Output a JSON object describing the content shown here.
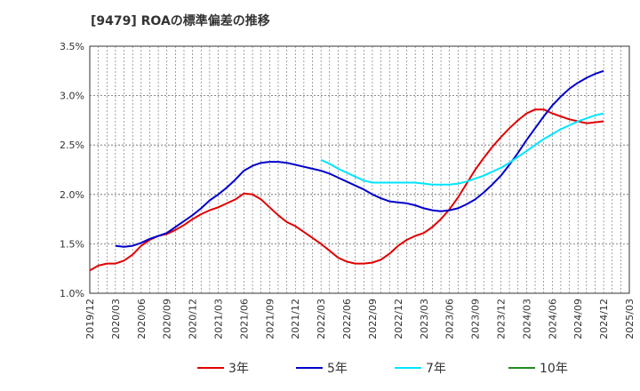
{
  "chart_data": {
    "type": "line",
    "title": "[9479]  ROAの標準偏差の推移",
    "xlabel": "",
    "ylabel": "",
    "ylim": [
      1.0,
      3.5
    ],
    "y_ticks": [
      "1.0%",
      "1.5%",
      "2.0%",
      "2.5%",
      "3.0%",
      "3.5%"
    ],
    "y_tick_values": [
      1.0,
      1.5,
      2.0,
      2.5,
      3.0,
      3.5
    ],
    "x_ticks": [
      "2019/12",
      "2020/03",
      "2020/06",
      "2020/09",
      "2020/12",
      "2021/03",
      "2021/06",
      "2021/09",
      "2021/12",
      "2022/03",
      "2022/06",
      "2022/09",
      "2022/12",
      "2023/03",
      "2023/06",
      "2023/09",
      "2023/12",
      "2024/03",
      "2024/06",
      "2024/09",
      "2024/12",
      "2025/03"
    ],
    "grid": true,
    "legend_position": "bottom",
    "series": [
      {
        "name": "3年",
        "color": "#e00000",
        "points": [
          [
            "2019/12",
            1.23
          ],
          [
            "2020/01",
            1.28
          ],
          [
            "2020/02",
            1.3
          ],
          [
            "2020/03",
            1.3
          ],
          [
            "2020/04",
            1.33
          ],
          [
            "2020/05",
            1.39
          ],
          [
            "2020/06",
            1.48
          ],
          [
            "2020/07",
            1.54
          ],
          [
            "2020/08",
            1.58
          ],
          [
            "2020/09",
            1.6
          ],
          [
            "2020/10",
            1.64
          ],
          [
            "2020/11",
            1.69
          ],
          [
            "2020/12",
            1.75
          ],
          [
            "2021/01",
            1.8
          ],
          [
            "2021/02",
            1.84
          ],
          [
            "2021/03",
            1.87
          ],
          [
            "2021/04",
            1.91
          ],
          [
            "2021/05",
            1.95
          ],
          [
            "2021/06",
            2.01
          ],
          [
            "2021/07",
            2.0
          ],
          [
            "2021/08",
            1.95
          ],
          [
            "2021/09",
            1.87
          ],
          [
            "2021/10",
            1.79
          ],
          [
            "2021/11",
            1.72
          ],
          [
            "2021/12",
            1.68
          ],
          [
            "2022/01",
            1.62
          ],
          [
            "2022/02",
            1.56
          ],
          [
            "2022/03",
            1.5
          ],
          [
            "2022/04",
            1.43
          ],
          [
            "2022/05",
            1.36
          ],
          [
            "2022/06",
            1.32
          ],
          [
            "2022/07",
            1.3
          ],
          [
            "2022/08",
            1.3
          ],
          [
            "2022/09",
            1.31
          ],
          [
            "2022/10",
            1.34
          ],
          [
            "2022/11",
            1.4
          ],
          [
            "2022/12",
            1.48
          ],
          [
            "2023/01",
            1.54
          ],
          [
            "2023/02",
            1.58
          ],
          [
            "2023/03",
            1.61
          ],
          [
            "2023/04",
            1.67
          ],
          [
            "2023/05",
            1.75
          ],
          [
            "2023/06",
            1.85
          ],
          [
            "2023/07",
            1.97
          ],
          [
            "2023/08",
            2.11
          ],
          [
            "2023/09",
            2.25
          ],
          [
            "2023/10",
            2.37
          ],
          [
            "2023/11",
            2.48
          ],
          [
            "2023/12",
            2.58
          ],
          [
            "2024/01",
            2.67
          ],
          [
            "2024/02",
            2.75
          ],
          [
            "2024/03",
            2.82
          ],
          [
            "2024/04",
            2.86
          ],
          [
            "2024/05",
            2.86
          ],
          [
            "2024/06",
            2.82
          ],
          [
            "2024/07",
            2.79
          ],
          [
            "2024/08",
            2.76
          ],
          [
            "2024/09",
            2.74
          ],
          [
            "2024/10",
            2.72
          ],
          [
            "2024/11",
            2.73
          ],
          [
            "2024/12",
            2.74
          ]
        ]
      },
      {
        "name": "5年",
        "color": "#0000cc",
        "points": [
          [
            "2020/03",
            1.48
          ],
          [
            "2020/04",
            1.47
          ],
          [
            "2020/05",
            1.48
          ],
          [
            "2020/06",
            1.51
          ],
          [
            "2020/07",
            1.55
          ],
          [
            "2020/08",
            1.58
          ],
          [
            "2020/09",
            1.61
          ],
          [
            "2020/10",
            1.67
          ],
          [
            "2020/11",
            1.73
          ],
          [
            "2020/12",
            1.79
          ],
          [
            "2021/01",
            1.86
          ],
          [
            "2021/02",
            1.94
          ],
          [
            "2021/03",
            2.0
          ],
          [
            "2021/04",
            2.07
          ],
          [
            "2021/05",
            2.15
          ],
          [
            "2021/06",
            2.24
          ],
          [
            "2021/07",
            2.29
          ],
          [
            "2021/08",
            2.32
          ],
          [
            "2021/09",
            2.33
          ],
          [
            "2021/10",
            2.33
          ],
          [
            "2021/11",
            2.32
          ],
          [
            "2021/12",
            2.3
          ],
          [
            "2022/01",
            2.28
          ],
          [
            "2022/02",
            2.26
          ],
          [
            "2022/03",
            2.24
          ],
          [
            "2022/04",
            2.21
          ],
          [
            "2022/05",
            2.17
          ],
          [
            "2022/06",
            2.13
          ],
          [
            "2022/07",
            2.09
          ],
          [
            "2022/08",
            2.05
          ],
          [
            "2022/09",
            2.0
          ],
          [
            "2022/10",
            1.96
          ],
          [
            "2022/11",
            1.93
          ],
          [
            "2022/12",
            1.92
          ],
          [
            "2023/01",
            1.91
          ],
          [
            "2023/02",
            1.89
          ],
          [
            "2023/03",
            1.86
          ],
          [
            "2023/04",
            1.84
          ],
          [
            "2023/05",
            1.83
          ],
          [
            "2023/06",
            1.84
          ],
          [
            "2023/07",
            1.86
          ],
          [
            "2023/08",
            1.9
          ],
          [
            "2023/09",
            1.95
          ],
          [
            "2023/10",
            2.02
          ],
          [
            "2023/11",
            2.1
          ],
          [
            "2023/12",
            2.19
          ],
          [
            "2024/01",
            2.3
          ],
          [
            "2024/02",
            2.42
          ],
          [
            "2024/03",
            2.55
          ],
          [
            "2024/04",
            2.67
          ],
          [
            "2024/05",
            2.79
          ],
          [
            "2024/06",
            2.9
          ],
          [
            "2024/07",
            2.99
          ],
          [
            "2024/08",
            3.07
          ],
          [
            "2024/09",
            3.13
          ],
          [
            "2024/10",
            3.18
          ],
          [
            "2024/11",
            3.22
          ],
          [
            "2024/12",
            3.25
          ]
        ]
      },
      {
        "name": "7年",
        "color": "#00e5ff",
        "points": [
          [
            "2022/03",
            2.35
          ],
          [
            "2022/04",
            2.31
          ],
          [
            "2022/05",
            2.26
          ],
          [
            "2022/06",
            2.22
          ],
          [
            "2022/07",
            2.18
          ],
          [
            "2022/08",
            2.14
          ],
          [
            "2022/09",
            2.12
          ],
          [
            "2022/10",
            2.12
          ],
          [
            "2022/11",
            2.12
          ],
          [
            "2022/12",
            2.12
          ],
          [
            "2023/01",
            2.12
          ],
          [
            "2023/02",
            2.12
          ],
          [
            "2023/03",
            2.11
          ],
          [
            "2023/04",
            2.1
          ],
          [
            "2023/05",
            2.1
          ],
          [
            "2023/06",
            2.1
          ],
          [
            "2023/07",
            2.11
          ],
          [
            "2023/08",
            2.13
          ],
          [
            "2023/09",
            2.16
          ],
          [
            "2023/10",
            2.19
          ],
          [
            "2023/11",
            2.23
          ],
          [
            "2023/12",
            2.27
          ],
          [
            "2024/01",
            2.32
          ],
          [
            "2024/02",
            2.38
          ],
          [
            "2024/03",
            2.44
          ],
          [
            "2024/04",
            2.5
          ],
          [
            "2024/05",
            2.56
          ],
          [
            "2024/06",
            2.61
          ],
          [
            "2024/07",
            2.66
          ],
          [
            "2024/08",
            2.7
          ],
          [
            "2024/09",
            2.74
          ],
          [
            "2024/10",
            2.77
          ],
          [
            "2024/11",
            2.8
          ],
          [
            "2024/12",
            2.82
          ]
        ]
      },
      {
        "name": "10年",
        "color": "#228b22",
        "points": []
      }
    ]
  }
}
